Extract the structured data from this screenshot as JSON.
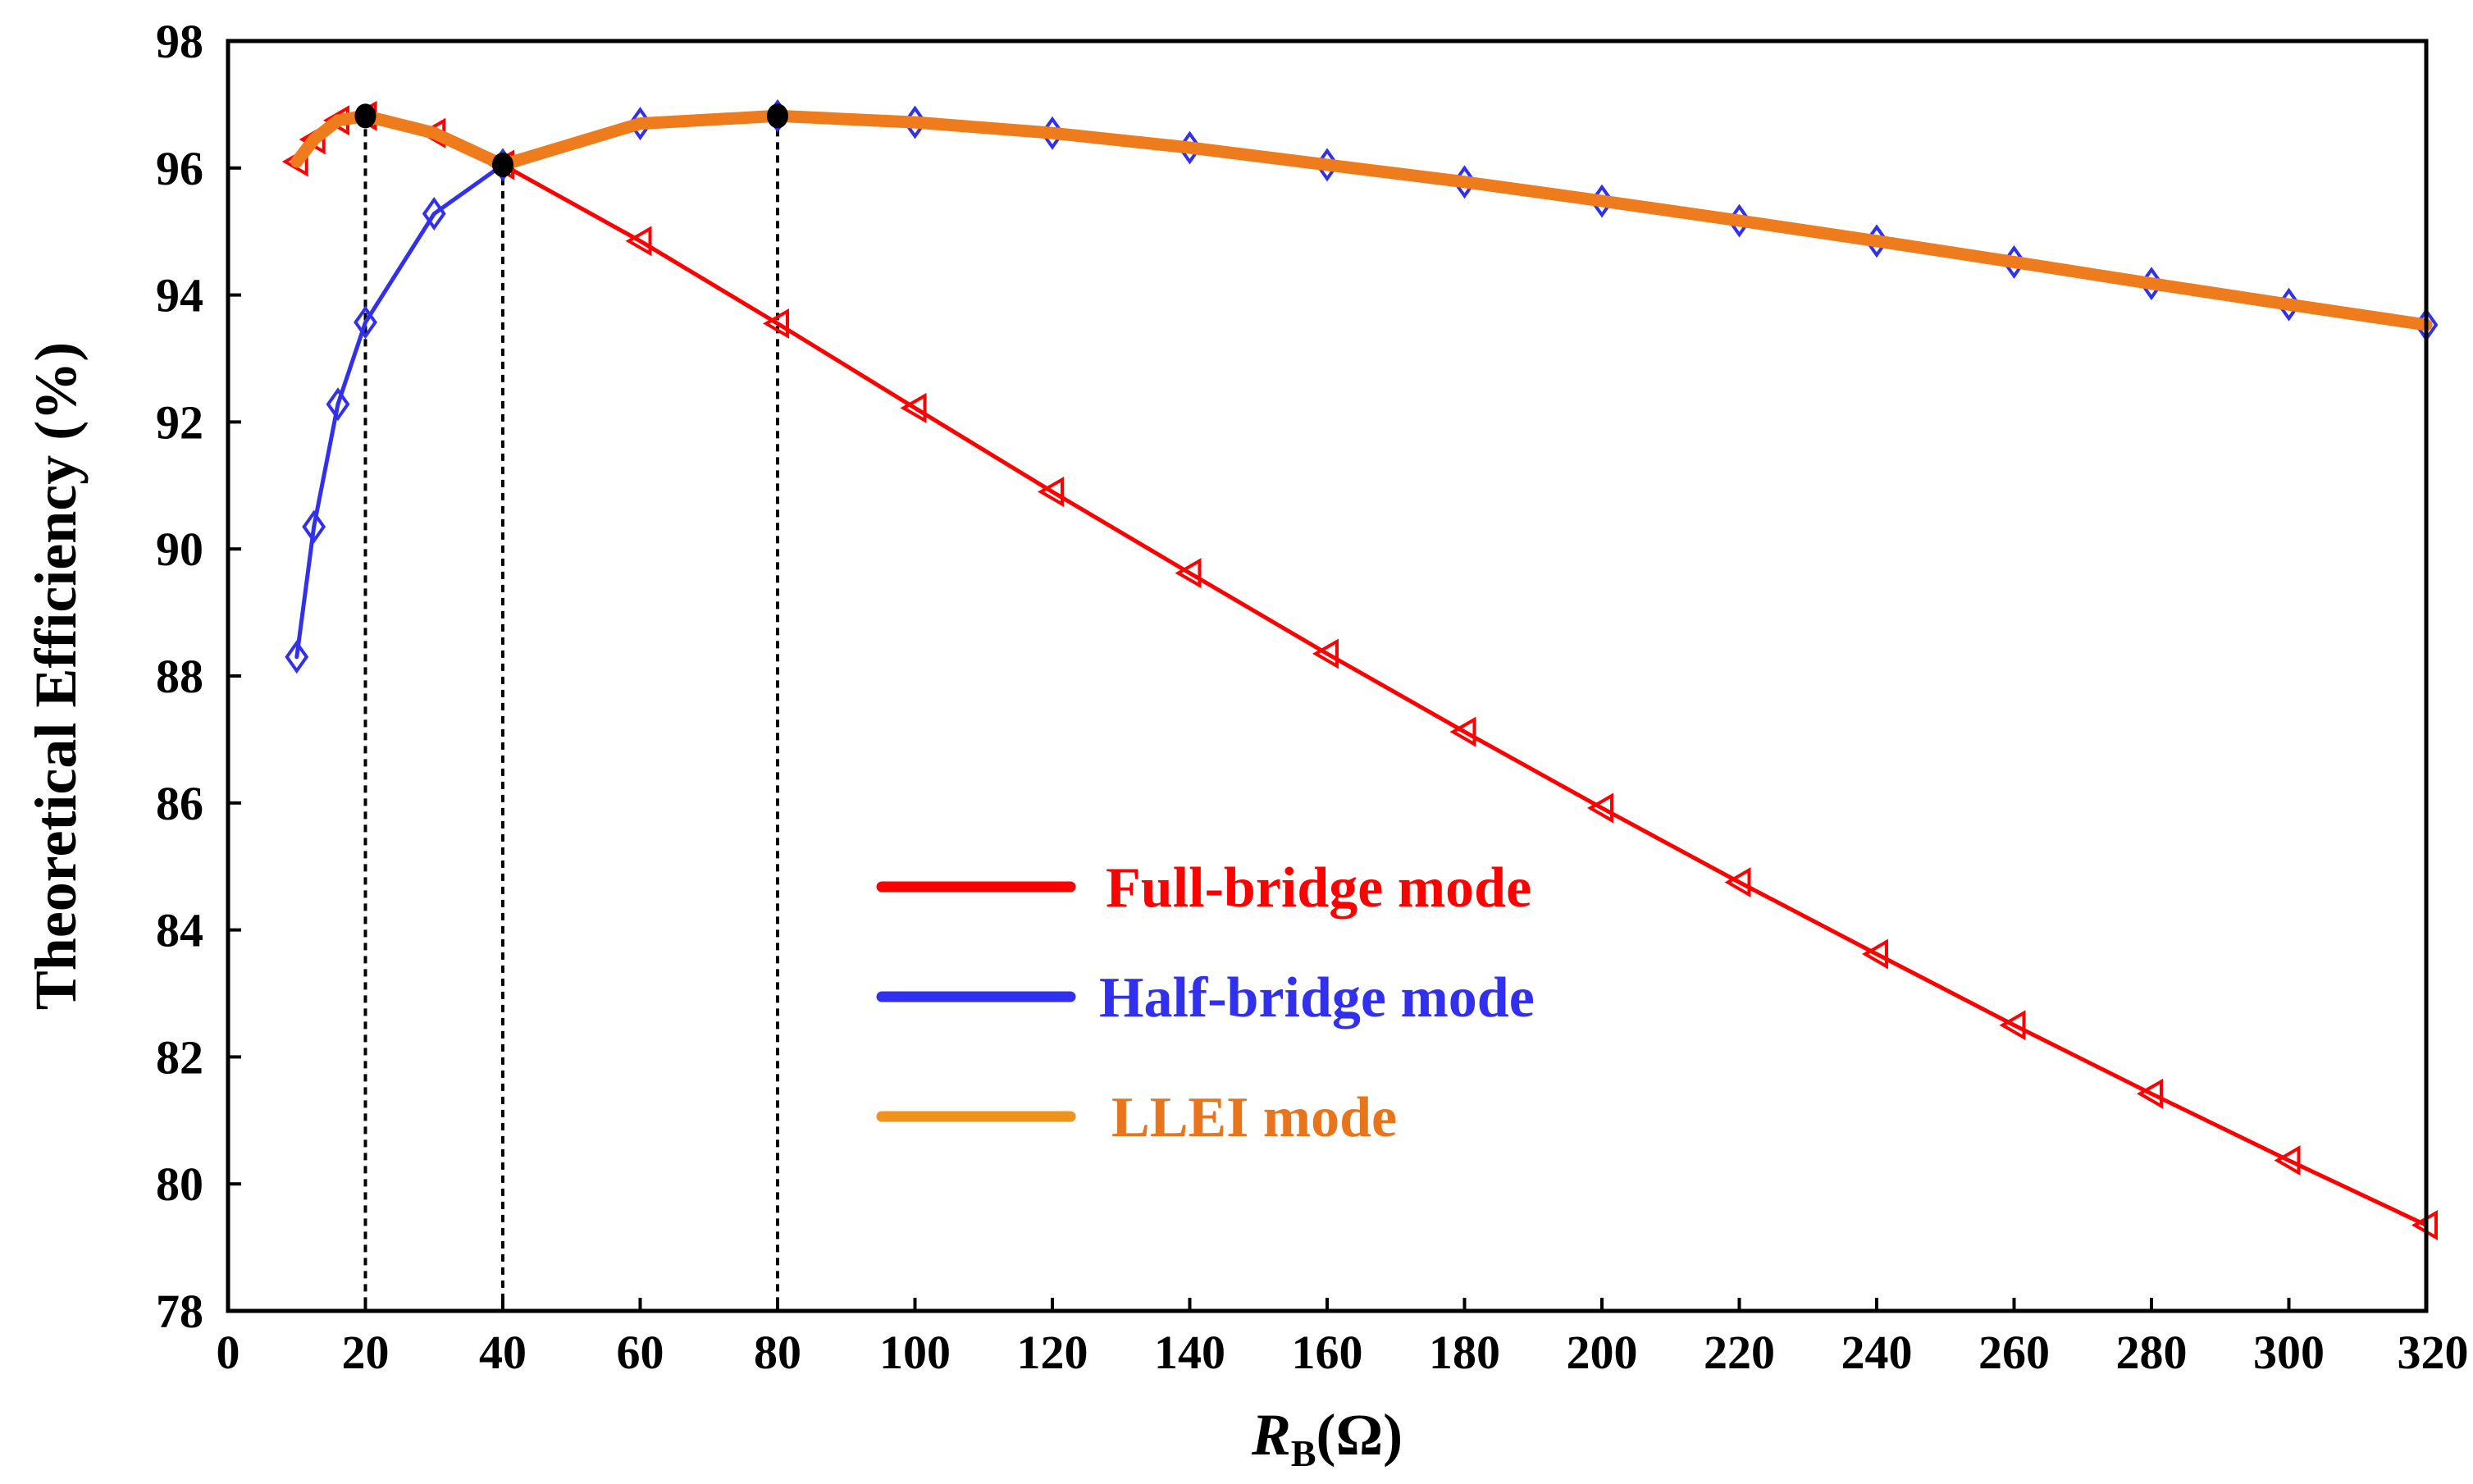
{
  "chart_data": {
    "type": "line",
    "title": "",
    "xlabel_main": "R",
    "xlabel_sub": "B",
    "xlabel_unit": "(Ω)",
    "ylabel": "Theoretical Efficiency (%)",
    "xlim": [
      0,
      320
    ],
    "ylim": [
      78,
      98
    ],
    "xticks": [
      0,
      20,
      40,
      60,
      80,
      100,
      120,
      140,
      160,
      180,
      200,
      220,
      240,
      260,
      280,
      300,
      320
    ],
    "yticks": [
      78,
      80,
      82,
      84,
      86,
      88,
      90,
      92,
      94,
      96,
      98
    ],
    "legend_position": "center",
    "series": [
      {
        "name": "Full-bridge mode",
        "color": "#ff0000",
        "marker": "triangle-left",
        "points": [
          [
            10,
            96.1
          ],
          [
            12.5,
            96.45
          ],
          [
            16,
            96.75
          ],
          [
            20,
            96.82
          ],
          [
            30,
            96.55
          ],
          [
            40,
            96.05
          ],
          [
            60,
            94.85
          ],
          [
            80,
            93.55
          ],
          [
            100,
            92.22
          ],
          [
            120,
            90.9
          ],
          [
            140,
            89.62
          ],
          [
            160,
            88.35
          ],
          [
            180,
            87.12
          ],
          [
            200,
            85.92
          ],
          [
            220,
            84.75
          ],
          [
            240,
            83.62
          ],
          [
            260,
            82.5
          ],
          [
            280,
            81.42
          ],
          [
            300,
            80.37
          ],
          [
            320,
            79.35
          ]
        ]
      },
      {
        "name": "Half-bridge mode",
        "color": "#3030ee",
        "marker": "diamond",
        "points": [
          [
            10,
            88.3
          ],
          [
            12.5,
            90.35
          ],
          [
            16,
            92.28
          ],
          [
            20,
            93.57
          ],
          [
            30,
            95.28
          ],
          [
            40,
            96.05
          ],
          [
            60,
            96.7
          ],
          [
            80,
            96.82
          ],
          [
            100,
            96.72
          ],
          [
            120,
            96.55
          ],
          [
            140,
            96.32
          ],
          [
            160,
            96.05
          ],
          [
            180,
            95.78
          ],
          [
            200,
            95.48
          ],
          [
            220,
            95.17
          ],
          [
            240,
            94.85
          ],
          [
            260,
            94.52
          ],
          [
            280,
            94.18
          ],
          [
            300,
            93.85
          ],
          [
            320,
            93.53
          ]
        ]
      },
      {
        "name": "LLEI mode",
        "color": "#ee7b1c",
        "legend_color": "#f0921c",
        "text_color": "#e8741c",
        "marker": "none",
        "points": [
          [
            10,
            96.1
          ],
          [
            12.5,
            96.45
          ],
          [
            16,
            96.75
          ],
          [
            20,
            96.82
          ],
          [
            30,
            96.55
          ],
          [
            40,
            96.05
          ],
          [
            60,
            96.7
          ],
          [
            80,
            96.82
          ],
          [
            100,
            96.72
          ],
          [
            120,
            96.55
          ],
          [
            140,
            96.32
          ],
          [
            160,
            96.05
          ],
          [
            180,
            95.78
          ],
          [
            200,
            95.48
          ],
          [
            220,
            95.17
          ],
          [
            240,
            94.85
          ],
          [
            260,
            94.52
          ],
          [
            280,
            94.18
          ],
          [
            300,
            93.85
          ],
          [
            320,
            93.53
          ]
        ]
      }
    ],
    "highlight_points": [
      [
        20,
        96.82
      ],
      [
        40,
        96.05
      ],
      [
        80,
        96.82
      ]
    ],
    "vertical_guides": [
      [
        20,
        96.82
      ],
      [
        40,
        96.05
      ],
      [
        80,
        96.82
      ]
    ]
  }
}
